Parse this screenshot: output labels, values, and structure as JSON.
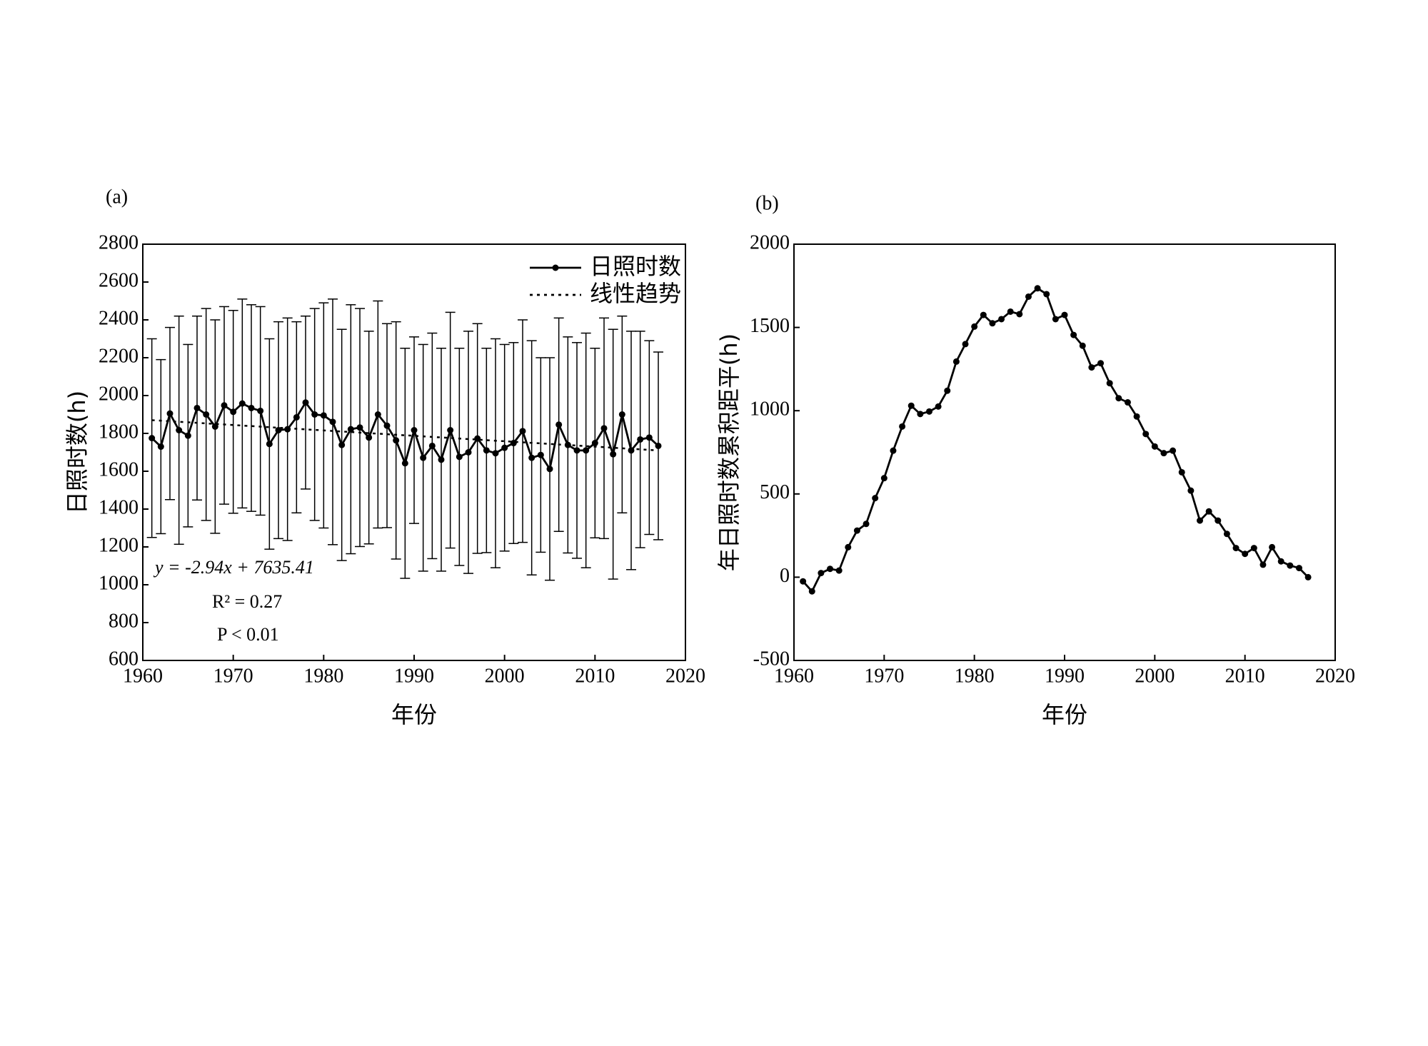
{
  "chart_data": [
    {
      "type": "line",
      "panel_label": "(a)",
      "xlabel": "年份",
      "ylabel": "日照时数(h)",
      "x": [
        1961,
        1962,
        1963,
        1964,
        1965,
        1966,
        1967,
        1968,
        1969,
        1970,
        1971,
        1972,
        1973,
        1974,
        1975,
        1976,
        1977,
        1978,
        1979,
        1980,
        1981,
        1982,
        1983,
        1984,
        1985,
        1986,
        1987,
        1988,
        1989,
        1990,
        1991,
        1992,
        1993,
        1994,
        1995,
        1996,
        1997,
        1998,
        1999,
        2000,
        2001,
        2002,
        2003,
        2004,
        2005,
        2006,
        2007,
        2008,
        2009,
        2010,
        2011,
        2012,
        2013,
        2014,
        2015,
        2016,
        2017
      ],
      "series": [
        {
          "name": "日照时数",
          "color": "#000000",
          "marker": true,
          "values": [
            1775,
            1730,
            1905,
            1817,
            1788,
            1934,
            1900,
            1836,
            1948,
            1914,
            1958,
            1934,
            1919,
            1744,
            1817,
            1822,
            1885,
            1963,
            1900,
            1895,
            1861,
            1739,
            1822,
            1831,
            1778,
            1900,
            1841,
            1763,
            1642,
            1817,
            1671,
            1734,
            1661,
            1817,
            1676,
            1700,
            1773,
            1710,
            1695,
            1724,
            1749,
            1812,
            1671,
            1686,
            1612,
            1846,
            1739,
            1710,
            1710,
            1749,
            1827,
            1690,
            1900,
            1710,
            1768,
            1778,
            1734
          ],
          "errors": [
            525,
            460,
            455,
            603,
            482,
            486,
            560,
            564,
            522,
            536,
            552,
            546,
            551,
            556,
            573,
            588,
            505,
            457,
            560,
            595,
            649,
            611,
            658,
            629,
            562,
            600,
            539,
            627,
            608,
            493,
            599,
            596,
            589,
            623,
            574,
            640,
            607,
            540,
            605,
            546,
            531,
            588,
            619,
            514,
            588,
            564,
            571,
            570,
            620,
            501,
            583,
            660,
            520,
            630,
            572,
            512,
            496
          ]
        },
        {
          "name": "线性趋势",
          "color": "#000000",
          "dash": "dotted",
          "x": [
            1961,
            2017
          ],
          "values": [
            1870,
            1710
          ]
        }
      ],
      "xlim": [
        1960,
        2020
      ],
      "xticks": [
        1960,
        1970,
        1980,
        1990,
        2000,
        2010,
        2020
      ],
      "ylim": [
        600,
        2800
      ],
      "yticks": [
        600,
        800,
        1000,
        1200,
        1400,
        1600,
        1800,
        2000,
        2200,
        2400,
        2600,
        2800
      ],
      "legend": "upper right",
      "annotations": [
        "y = -2.94x + 7635.41",
        "R² = 0.27",
        "P < 0.01"
      ]
    },
    {
      "type": "line",
      "panel_label": "(b)",
      "xlabel": "年份",
      "ylabel": "年日照时数累积距平(h)",
      "x": [
        1961,
        1962,
        1963,
        1964,
        1965,
        1966,
        1967,
        1968,
        1969,
        1970,
        1971,
        1972,
        1973,
        1974,
        1975,
        1976,
        1977,
        1978,
        1979,
        1980,
        1981,
        1982,
        1983,
        1984,
        1985,
        1986,
        1987,
        1988,
        1989,
        1990,
        1991,
        1992,
        1993,
        1994,
        1995,
        1996,
        1997,
        1998,
        1999,
        2000,
        2001,
        2002,
        2003,
        2004,
        2005,
        2006,
        2007,
        2008,
        2009,
        2010,
        2011,
        2012,
        2013,
        2014,
        2015,
        2016,
        2017
      ],
      "series": [
        {
          "color": "#000000",
          "marker": true,
          "values": [
            -25,
            -85,
            25,
            50,
            40,
            180,
            280,
            320,
            475,
            595,
            760,
            905,
            1030,
            980,
            995,
            1025,
            1120,
            1295,
            1400,
            1505,
            1575,
            1525,
            1550,
            1595,
            1580,
            1685,
            1735,
            1700,
            1550,
            1575,
            1455,
            1390,
            1260,
            1285,
            1165,
            1075,
            1050,
            965,
            860,
            785,
            745,
            760,
            630,
            520,
            340,
            395,
            340,
            260,
            175,
            140,
            175,
            75,
            180,
            95,
            70,
            55,
            0
          ]
        }
      ],
      "xlim": [
        1960,
        2020
      ],
      "xticks": [
        1960,
        1970,
        1980,
        1990,
        2000,
        2010,
        2020
      ],
      "ylim": [
        -500,
        2000
      ],
      "yticks": [
        -500,
        0,
        500,
        1000,
        1500,
        2000
      ]
    }
  ]
}
